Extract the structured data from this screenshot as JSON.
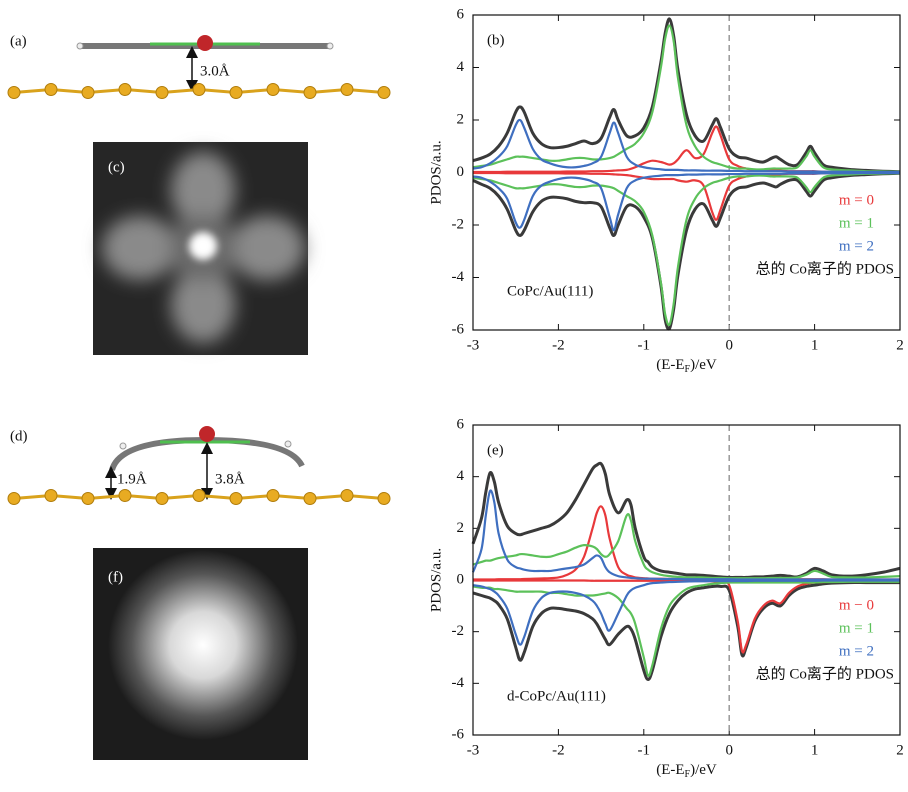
{
  "figure": {
    "panel_labels": [
      "(a)",
      "(c)",
      "(d)",
      "(f)"
    ],
    "distances": [
      "3.0Å",
      "1.9Å",
      "3.8Å"
    ]
  },
  "chart_data": [
    {
      "type": "line",
      "panel_label": "(b)",
      "annotation": "CoPc/Au(111)",
      "y_label": "PDOS/a.u.",
      "x_label": {
        "prefix": "(E-E",
        "sub": "F",
        "suffix": ")/eV"
      },
      "xlim": [
        -3,
        2
      ],
      "ylim": [
        -6,
        6
      ],
      "xticks": [
        -3,
        -2,
        -1,
        0,
        1,
        2
      ],
      "yticks": [
        -6,
        -4,
        -2,
        0,
        2,
        4,
        6
      ],
      "vline": 0,
      "legend": "lower right",
      "x": [
        -3,
        -2.9,
        -2.8,
        -2.7,
        -2.6,
        -2.5,
        -2.45,
        -2.4,
        -2.3,
        -2.2,
        -2.1,
        -2,
        -1.9,
        -1.8,
        -1.7,
        -1.6,
        -1.5,
        -1.4,
        -1.35,
        -1.3,
        -1.2,
        -1.1,
        -1,
        -0.9,
        -0.8,
        -0.75,
        -0.7,
        -0.65,
        -0.6,
        -0.5,
        -0.4,
        -0.3,
        -0.2,
        -0.15,
        -0.1,
        0,
        0.1,
        0.2,
        0.3,
        0.4,
        0.5,
        0.55,
        0.6,
        0.7,
        0.8,
        0.9,
        0.95,
        1,
        1.1,
        1.2,
        1.4,
        1.6,
        1.8,
        2
      ],
      "series": [
        {
          "name": "总的 Co离子的 PDOS",
          "color": "#3a3a3a",
          "values": [
            0.45,
            0.55,
            0.7,
            1.0,
            1.5,
            2.3,
            2.5,
            2.3,
            1.5,
            1.1,
            0.95,
            0.95,
            1.0,
            1.1,
            1.2,
            1.1,
            1.3,
            2.1,
            2.4,
            2.0,
            1.4,
            1.4,
            1.7,
            2.5,
            4.2,
            5.3,
            5.85,
            5.2,
            3.9,
            2.2,
            1.4,
            1.2,
            1.8,
            2.05,
            1.7,
            0.9,
            0.6,
            0.55,
            0.45,
            0.4,
            0.55,
            0.6,
            0.5,
            0.3,
            0.3,
            0.75,
            1.0,
            0.75,
            0.3,
            0.2,
            0.12,
            0.08,
            0.05,
            0.03
          ],
          "values_down": [
            -0.3,
            -0.45,
            -0.6,
            -0.9,
            -1.4,
            -2.2,
            -2.4,
            -2.2,
            -1.5,
            -1.1,
            -0.95,
            -0.95,
            -1.0,
            -1.1,
            -1.15,
            -1.15,
            -1.3,
            -2.1,
            -2.4,
            -2.0,
            -1.3,
            -1.3,
            -1.7,
            -2.5,
            -4.3,
            -5.6,
            -5.95,
            -5.2,
            -3.9,
            -2.2,
            -1.4,
            -1.2,
            -1.8,
            -2.05,
            -1.7,
            -0.9,
            -0.6,
            -0.55,
            -0.45,
            -0.4,
            -0.5,
            -0.55,
            -0.45,
            -0.3,
            -0.3,
            -0.7,
            -0.9,
            -0.7,
            -0.3,
            -0.2,
            -0.12,
            -0.08,
            -0.05,
            -0.03
          ]
        },
        {
          "name": "m = 0",
          "color": "#e8393b",
          "values": [
            0.02,
            0.02,
            0.02,
            0.02,
            0.03,
            0.03,
            0.03,
            0.03,
            0.03,
            0.03,
            0.03,
            0.03,
            0.04,
            0.04,
            0.04,
            0.05,
            0.05,
            0.06,
            0.07,
            0.08,
            0.1,
            0.2,
            0.35,
            0.45,
            0.4,
            0.35,
            0.3,
            0.35,
            0.5,
            0.85,
            0.55,
            0.7,
            1.5,
            1.75,
            1.4,
            0.5,
            0.25,
            0.15,
            0.1,
            0.08,
            0.08,
            0.08,
            0.07,
            0.05,
            0.05,
            0.05,
            0.05,
            0.05,
            0.03,
            0.02,
            0.02,
            0.02,
            0.02,
            0.02
          ],
          "values_down": [
            -0.02,
            -0.02,
            -0.02,
            -0.02,
            -0.03,
            -0.03,
            -0.03,
            -0.03,
            -0.03,
            -0.03,
            -0.03,
            -0.03,
            -0.04,
            -0.04,
            -0.04,
            -0.05,
            -0.05,
            -0.06,
            -0.07,
            -0.08,
            -0.1,
            -0.15,
            -0.2,
            -0.25,
            -0.25,
            -0.25,
            -0.25,
            -0.25,
            -0.3,
            -0.35,
            -0.3,
            -0.5,
            -1.5,
            -1.8,
            -1.4,
            -0.5,
            -0.25,
            -0.15,
            -0.1,
            -0.08,
            -0.08,
            -0.08,
            -0.07,
            -0.05,
            -0.05,
            -0.05,
            -0.05,
            -0.05,
            -0.03,
            -0.02,
            -0.02,
            -0.02,
            -0.02,
            -0.02
          ]
        },
        {
          "name": "m = 1",
          "color": "#5cc15a",
          "values": [
            0.2,
            0.25,
            0.3,
            0.4,
            0.5,
            0.6,
            0.6,
            0.6,
            0.55,
            0.5,
            0.45,
            0.45,
            0.5,
            0.55,
            0.55,
            0.5,
            0.5,
            0.55,
            0.6,
            0.7,
            0.9,
            1.1,
            1.5,
            2.3,
            4.0,
            5.1,
            5.6,
            5.0,
            3.6,
            1.8,
            1.0,
            0.6,
            0.4,
            0.35,
            0.3,
            0.2,
            0.15,
            0.15,
            0.12,
            0.12,
            0.15,
            0.15,
            0.15,
            0.15,
            0.2,
            0.6,
            0.85,
            0.6,
            0.2,
            0.12,
            0.08,
            0.05,
            0.04,
            0.03
          ],
          "values_down": [
            -0.2,
            -0.25,
            -0.3,
            -0.4,
            -0.5,
            -0.6,
            -0.6,
            -0.6,
            -0.55,
            -0.5,
            -0.45,
            -0.45,
            -0.5,
            -0.55,
            -0.55,
            -0.5,
            -0.5,
            -0.55,
            -0.6,
            -0.7,
            -0.9,
            -1.1,
            -1.5,
            -2.4,
            -4.2,
            -5.4,
            -5.8,
            -5.0,
            -3.6,
            -1.8,
            -1.0,
            -0.6,
            -0.4,
            -0.35,
            -0.3,
            -0.2,
            -0.15,
            -0.15,
            -0.12,
            -0.12,
            -0.15,
            -0.15,
            -0.15,
            -0.15,
            -0.2,
            -0.55,
            -0.75,
            -0.55,
            -0.2,
            -0.12,
            -0.08,
            -0.05,
            -0.04,
            -0.03
          ]
        },
        {
          "name": "m = 2",
          "color": "#3f6fc0",
          "values": [
            0.15,
            0.2,
            0.35,
            0.6,
            1.0,
            1.8,
            2.0,
            1.7,
            0.9,
            0.5,
            0.35,
            0.25,
            0.2,
            0.2,
            0.25,
            0.35,
            0.6,
            1.5,
            1.9,
            1.5,
            0.6,
            0.3,
            0.2,
            0.15,
            0.12,
            0.1,
            0.1,
            0.1,
            0.1,
            0.08,
            0.08,
            0.07,
            0.07,
            0.07,
            0.07,
            0.06,
            0.06,
            0.05,
            0.05,
            0.05,
            0.05,
            0.05,
            0.05,
            0.04,
            0.04,
            0.04,
            0.04,
            0.04,
            0.03,
            0.03,
            0.03,
            0.02,
            0.02,
            0.02
          ],
          "values_down": [
            -0.15,
            -0.2,
            -0.35,
            -0.6,
            -1.0,
            -1.9,
            -2.1,
            -1.8,
            -0.9,
            -0.5,
            -0.35,
            -0.25,
            -0.2,
            -0.2,
            -0.25,
            -0.35,
            -0.6,
            -1.7,
            -2.2,
            -1.6,
            -0.6,
            -0.3,
            -0.2,
            -0.15,
            -0.12,
            -0.1,
            -0.1,
            -0.1,
            -0.1,
            -0.08,
            -0.08,
            -0.07,
            -0.07,
            -0.07,
            -0.07,
            -0.06,
            -0.06,
            -0.05,
            -0.05,
            -0.05,
            -0.05,
            -0.05,
            -0.05,
            -0.04,
            -0.04,
            -0.04,
            -0.04,
            -0.04,
            -0.03,
            -0.03,
            -0.03,
            -0.02,
            -0.02,
            -0.02
          ]
        }
      ]
    },
    {
      "type": "line",
      "panel_label": "(e)",
      "annotation": "d-CoPc/Au(111)",
      "y_label": "PDOS/a.u.",
      "x_label": {
        "prefix": "(E-E",
        "sub": "F",
        "suffix": ")/eV"
      },
      "xlim": [
        -3,
        2
      ],
      "ylim": [
        -6,
        6
      ],
      "xticks": [
        -3,
        -2,
        -1,
        0,
        1,
        2
      ],
      "yticks": [
        -6,
        -4,
        -2,
        0,
        2,
        4,
        6
      ],
      "vline": 0,
      "legend": "lower right",
      "x": [
        -3,
        -2.9,
        -2.85,
        -2.8,
        -2.75,
        -2.7,
        -2.6,
        -2.5,
        -2.45,
        -2.4,
        -2.3,
        -2.2,
        -2.1,
        -2,
        -1.9,
        -1.8,
        -1.7,
        -1.6,
        -1.55,
        -1.5,
        -1.45,
        -1.4,
        -1.3,
        -1.2,
        -1.15,
        -1.1,
        -1,
        -0.95,
        -0.9,
        -0.8,
        -0.7,
        -0.6,
        -0.5,
        -0.4,
        -0.3,
        -0.2,
        -0.1,
        0,
        0.1,
        0.15,
        0.2,
        0.3,
        0.4,
        0.5,
        0.6,
        0.7,
        0.8,
        0.9,
        1,
        1.1,
        1.2,
        1.4,
        1.6,
        1.8,
        2
      ],
      "series": [
        {
          "name": "总的 Co离子的 PDOS",
          "color": "#3a3a3a",
          "values": [
            1.4,
            2.4,
            3.4,
            4.15,
            3.8,
            3.0,
            2.1,
            1.8,
            1.75,
            1.8,
            1.9,
            2.0,
            2.1,
            2.3,
            2.6,
            3.1,
            3.7,
            4.3,
            4.45,
            4.5,
            4.1,
            3.3,
            2.6,
            3.1,
            2.9,
            2.0,
            0.9,
            0.7,
            0.5,
            0.35,
            0.3,
            0.25,
            0.2,
            0.2,
            0.18,
            0.15,
            0.12,
            0.1,
            0.1,
            0.1,
            0.1,
            0.12,
            0.12,
            0.15,
            0.18,
            0.15,
            0.12,
            0.25,
            0.45,
            0.35,
            0.2,
            0.15,
            0.2,
            0.3,
            0.45
          ],
          "values_down": [
            -0.5,
            -0.6,
            -0.65,
            -0.7,
            -0.8,
            -0.95,
            -1.5,
            -2.6,
            -3.1,
            -2.8,
            -1.8,
            -1.3,
            -1.1,
            -1.1,
            -1.15,
            -1.2,
            -1.3,
            -1.5,
            -1.7,
            -2.0,
            -2.3,
            -2.5,
            -2.1,
            -1.8,
            -1.9,
            -2.3,
            -3.5,
            -3.85,
            -3.5,
            -2.2,
            -1.3,
            -0.8,
            -0.5,
            -0.35,
            -0.3,
            -0.25,
            -0.25,
            -0.4,
            -1.8,
            -2.9,
            -2.6,
            -1.6,
            -1.1,
            -0.9,
            -1.0,
            -0.6,
            -0.35,
            -0.25,
            -0.2,
            -0.15,
            -0.12,
            -0.1,
            -0.1,
            -0.1,
            -0.1
          ]
        },
        {
          "name": "m − 0",
          "color": "#e8393b",
          "values": [
            0.02,
            0.02,
            0.02,
            0.02,
            0.02,
            0.03,
            0.03,
            0.03,
            0.03,
            0.04,
            0.05,
            0.06,
            0.07,
            0.1,
            0.2,
            0.4,
            0.9,
            2.0,
            2.6,
            2.85,
            2.5,
            1.6,
            0.5,
            0.2,
            0.15,
            0.1,
            0.07,
            0.06,
            0.05,
            0.05,
            0.04,
            0.04,
            0.04,
            0.03,
            0.03,
            0.03,
            0.03,
            0.03,
            0.03,
            0.03,
            0.03,
            0.03,
            0.03,
            0.03,
            0.03,
            0.03,
            0.03,
            0.03,
            0.03,
            0.03,
            0.02,
            0.02,
            0.02,
            0.02,
            0.02
          ],
          "values_down": [
            -0.02,
            -0.02,
            -0.02,
            -0.02,
            -0.02,
            -0.02,
            -0.02,
            -0.02,
            -0.02,
            -0.02,
            -0.02,
            -0.02,
            -0.02,
            -0.02,
            -0.02,
            -0.02,
            -0.02,
            -0.03,
            -0.03,
            -0.03,
            -0.03,
            -0.03,
            -0.03,
            -0.03,
            -0.03,
            -0.03,
            -0.03,
            -0.03,
            -0.03,
            -0.03,
            -0.03,
            -0.03,
            -0.03,
            -0.04,
            -0.04,
            -0.05,
            -0.08,
            -0.2,
            -1.6,
            -2.75,
            -2.5,
            -1.5,
            -1.0,
            -0.8,
            -0.9,
            -0.5,
            -0.25,
            -0.15,
            -0.1,
            -0.08,
            -0.06,
            -0.05,
            -0.05,
            -0.05,
            -0.05
          ]
        },
        {
          "name": "m = 1",
          "color": "#5cc15a",
          "values": [
            0.6,
            0.7,
            0.75,
            0.75,
            0.8,
            0.85,
            0.9,
            0.95,
            1.0,
            1.0,
            0.95,
            0.9,
            0.9,
            1.0,
            1.1,
            1.25,
            1.35,
            1.3,
            1.2,
            1.0,
            0.9,
            1.0,
            1.5,
            2.5,
            2.3,
            1.5,
            0.6,
            0.4,
            0.3,
            0.2,
            0.15,
            0.12,
            0.1,
            0.1,
            0.1,
            0.08,
            0.08,
            0.07,
            0.07,
            0.07,
            0.07,
            0.07,
            0.07,
            0.08,
            0.08,
            0.08,
            0.1,
            0.2,
            0.35,
            0.25,
            0.12,
            0.1,
            0.1,
            0.12,
            0.15
          ],
          "values_down": [
            -0.25,
            -0.3,
            -0.3,
            -0.3,
            -0.35,
            -0.35,
            -0.4,
            -0.45,
            -0.45,
            -0.45,
            -0.45,
            -0.45,
            -0.5,
            -0.5,
            -0.55,
            -0.6,
            -0.6,
            -0.6,
            -0.58,
            -0.55,
            -0.52,
            -0.5,
            -0.7,
            -1.1,
            -1.3,
            -1.7,
            -3.0,
            -3.7,
            -3.3,
            -1.9,
            -1.0,
            -0.6,
            -0.35,
            -0.25,
            -0.2,
            -0.15,
            -0.12,
            -0.1,
            -0.1,
            -0.1,
            -0.1,
            -0.1,
            -0.1,
            -0.1,
            -0.1,
            -0.1,
            -0.1,
            -0.1,
            -0.1,
            -0.08,
            -0.08,
            -0.07,
            -0.07,
            -0.07,
            -0.07
          ]
        },
        {
          "name": "m = 2",
          "color": "#3f6fc0",
          "values": [
            0.3,
            1.2,
            2.5,
            3.45,
            3.0,
            1.8,
            0.8,
            0.5,
            0.45,
            0.4,
            0.35,
            0.35,
            0.35,
            0.4,
            0.45,
            0.5,
            0.6,
            0.85,
            0.95,
            0.85,
            0.5,
            0.3,
            0.15,
            0.1,
            0.08,
            0.07,
            0.05,
            0.05,
            0.05,
            0.04,
            0.04,
            0.04,
            0.03,
            0.03,
            0.03,
            0.03,
            0.03,
            0.03,
            0.02,
            0.02,
            0.02,
            0.02,
            0.02,
            0.02,
            0.02,
            0.02,
            0.02,
            0.02,
            0.02,
            0.02,
            0.02,
            0.02,
            0.02,
            0.02,
            0.02
          ],
          "values_down": [
            -0.2,
            -0.25,
            -0.3,
            -0.35,
            -0.45,
            -0.6,
            -1.1,
            -2.1,
            -2.5,
            -2.2,
            -1.2,
            -0.7,
            -0.5,
            -0.45,
            -0.45,
            -0.5,
            -0.6,
            -0.8,
            -1.0,
            -1.3,
            -1.7,
            -1.95,
            -1.3,
            -0.6,
            -0.4,
            -0.3,
            -0.2,
            -0.15,
            -0.12,
            -0.1,
            -0.08,
            -0.07,
            -0.06,
            -0.05,
            -0.05,
            -0.04,
            -0.04,
            -0.04,
            -0.04,
            -0.04,
            -0.04,
            -0.03,
            -0.03,
            -0.03,
            -0.03,
            -0.03,
            -0.03,
            -0.03,
            -0.03,
            -0.02,
            -0.02,
            -0.02,
            -0.02,
            -0.02,
            -0.02
          ]
        }
      ]
    }
  ]
}
